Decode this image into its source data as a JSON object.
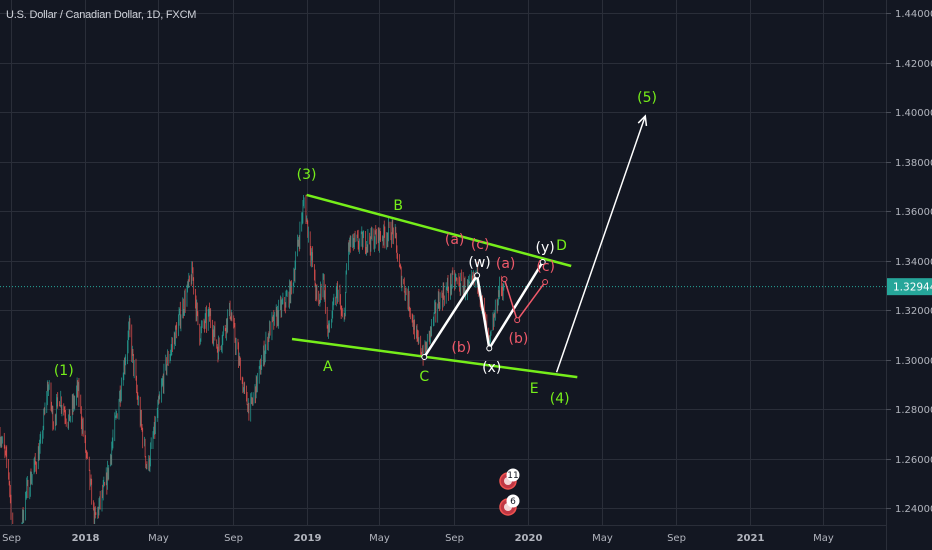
{
  "header": {
    "title": "U.S. Dollar / Canadian Dollar, 1D, FXCM"
  },
  "colors": {
    "background": "#131722",
    "grid": "#2a2e39",
    "up": "#26a69a",
    "down": "#ef5350",
    "trendline": "#76ee1a",
    "wave_white": "#ffffff",
    "wave_red": "#f0596a",
    "price_line": "#26a69a"
  },
  "chart_data": {
    "type": "candlestick",
    "title": "U.S. Dollar / Canadian Dollar, 1D, FXCM",
    "ylim": [
      1.235,
      1.447
    ],
    "xlim": [
      "2017-08-14",
      "2021-07-20"
    ],
    "grid": true,
    "y_ticks": [
      "1.24000",
      "1.26000",
      "1.28000",
      "1.30000",
      "1.32000",
      "1.34000",
      "1.36000",
      "1.38000",
      "1.40000",
      "1.42000",
      "1.44000"
    ],
    "x_ticks": [
      {
        "label": "Sep",
        "date": "2017-09-01"
      },
      {
        "label": "2018",
        "date": "2018-01-01"
      },
      {
        "label": "May",
        "date": "2018-05-01"
      },
      {
        "label": "Sep",
        "date": "2018-09-01"
      },
      {
        "label": "2019",
        "date": "2019-01-01"
      },
      {
        "label": "May",
        "date": "2019-05-01"
      },
      {
        "label": "Sep",
        "date": "2019-09-01"
      },
      {
        "label": "2020",
        "date": "2020-01-01"
      },
      {
        "label": "May",
        "date": "2020-05-01"
      },
      {
        "label": "Sep",
        "date": "2020-09-01"
      },
      {
        "label": "2021",
        "date": "2021-01-01"
      },
      {
        "label": "May",
        "date": "2021-05-01"
      }
    ],
    "last_price": "1.32944",
    "price_path": [
      [
        "2017-08-14",
        1.27
      ],
      [
        "2017-08-28",
        1.255
      ],
      [
        "2017-09-08",
        1.215
      ],
      [
        "2017-09-25",
        1.245
      ],
      [
        "2017-10-20",
        1.265
      ],
      [
        "2017-11-01",
        1.29
      ],
      [
        "2017-11-10",
        1.275
      ],
      [
        "2017-11-20",
        1.285
      ],
      [
        "2017-12-05",
        1.275
      ],
      [
        "2017-12-20",
        1.288
      ],
      [
        "2018-01-17",
        1.235
      ],
      [
        "2018-02-05",
        1.25
      ],
      [
        "2018-03-15",
        1.312
      ],
      [
        "2018-03-28",
        1.285
      ],
      [
        "2018-04-14",
        1.255
      ],
      [
        "2018-05-12",
        1.295
      ],
      [
        "2018-06-27",
        1.335
      ],
      [
        "2018-07-08",
        1.31
      ],
      [
        "2018-07-25",
        1.318
      ],
      [
        "2018-08-08",
        1.304
      ],
      [
        "2018-08-28",
        1.32
      ],
      [
        "2018-09-22",
        1.284
      ],
      [
        "2018-10-01",
        1.28
      ],
      [
        "2018-11-01",
        1.312
      ],
      [
        "2018-12-07",
        1.328
      ],
      [
        "2018-12-28",
        1.364
      ],
      [
        "2019-01-10",
        1.34
      ],
      [
        "2019-01-20",
        1.32
      ],
      [
        "2019-01-28",
        1.335
      ],
      [
        "2019-02-05",
        1.31
      ],
      [
        "2019-02-21",
        1.328
      ],
      [
        "2019-03-03",
        1.312
      ],
      [
        "2019-03-10",
        1.346
      ],
      [
        "2019-04-23",
        1.349
      ],
      [
        "2019-05-25",
        1.352
      ],
      [
        "2019-06-03",
        1.336
      ],
      [
        "2019-06-20",
        1.322
      ],
      [
        "2019-07-02",
        1.307
      ],
      [
        "2019-07-14",
        1.302
      ],
      [
        "2019-08-07",
        1.324
      ],
      [
        "2019-09-01",
        1.332
      ],
      [
        "2019-09-26",
        1.328
      ],
      [
        "2019-10-09",
        1.334
      ],
      [
        "2019-10-29",
        1.305
      ],
      [
        "2019-11-14",
        1.328
      ],
      [
        "2019-11-22",
        1.32944
      ]
    ],
    "trendlines": [
      {
        "name": "upper",
        "color": "#76ee1a",
        "points": [
          [
            "2019-01-01",
            1.3665
          ],
          [
            "2020-03-12",
            1.3378
          ]
        ]
      },
      {
        "name": "lower",
        "color": "#76ee1a",
        "points": [
          [
            "2018-12-08",
            1.3083
          ],
          [
            "2020-03-22",
            1.2929
          ]
        ]
      },
      {
        "name": "wxy",
        "color": "#ffffff",
        "points": [
          [
            "2019-07-14",
            1.301
          ],
          [
            "2019-10-09",
            1.334
          ],
          [
            "2019-10-29",
            1.3045
          ],
          [
            "2020-01-25",
            1.3394
          ]
        ]
      },
      {
        "name": "abc",
        "color": "#f0596a",
        "points": [
          [
            "2019-11-23",
            1.3325
          ],
          [
            "2019-12-14",
            1.3159
          ],
          [
            "2020-01-29",
            1.3313
          ]
        ]
      },
      {
        "name": "projection",
        "color": "#ffffff",
        "arrow": true,
        "points": [
          [
            "2020-02-17",
            1.2949
          ],
          [
            "2020-07-12",
            1.3984
          ]
        ]
      }
    ],
    "annotations": [
      {
        "text": "(1)",
        "date": "2017-11-27",
        "price": 1.2958,
        "color": "#76ee1a"
      },
      {
        "text": "(3)",
        "date": "2019-01-01",
        "price": 1.375,
        "color": "#76ee1a"
      },
      {
        "text": "B",
        "date": "2019-06-01",
        "price": 1.3624,
        "color": "#76ee1a"
      },
      {
        "text": "A",
        "date": "2019-02-05",
        "price": 1.2974,
        "color": "#76ee1a"
      },
      {
        "text": "C",
        "date": "2019-07-14",
        "price": 1.2933,
        "color": "#76ee1a"
      },
      {
        "text": "(a)",
        "date": "2019-09-02",
        "price": 1.3487,
        "color": "#f0596a"
      },
      {
        "text": "(c)",
        "date": "2019-10-14",
        "price": 1.3467,
        "color": "#f0596a"
      },
      {
        "text": "(w)",
        "date": "2019-10-13",
        "price": 1.3394,
        "color": "#ffffff"
      },
      {
        "text": "(a)",
        "date": "2019-11-25",
        "price": 1.339,
        "color": "#f0596a"
      },
      {
        "text": "(b)",
        "date": "2019-09-13",
        "price": 1.305,
        "color": "#f0596a"
      },
      {
        "text": "(b)",
        "date": "2019-12-16",
        "price": 1.3087,
        "color": "#f0596a"
      },
      {
        "text": "(x)",
        "date": "2019-11-02",
        "price": 1.297,
        "color": "#ffffff"
      },
      {
        "text": "(y)",
        "date": "2020-01-29",
        "price": 1.3455,
        "color": "#ffffff"
      },
      {
        "text": "D",
        "date": "2020-02-25",
        "price": 1.3463,
        "color": "#76ee1a"
      },
      {
        "text": "(c)",
        "date": "2020-01-30",
        "price": 1.3378,
        "color": "#f0596a"
      },
      {
        "text": "E",
        "date": "2020-01-11",
        "price": 1.2885,
        "color": "#76ee1a"
      },
      {
        "text": "(4)",
        "date": "2020-02-22",
        "price": 1.2844,
        "color": "#76ee1a"
      },
      {
        "text": "(5)",
        "date": "2020-07-15",
        "price": 1.406,
        "color": "#76ee1a"
      }
    ],
    "events": [
      {
        "icon": "earnings-c-icon",
        "badge": "11"
      },
      {
        "icon": "flag-icon",
        "badge": "6"
      }
    ]
  }
}
